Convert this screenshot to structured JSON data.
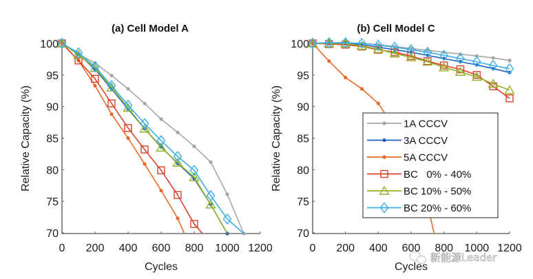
{
  "chart_data": [
    {
      "type": "line",
      "title": "(a) Cell Model A",
      "xlabel": "Cycles",
      "ylabel": "Relative Capacity (%)",
      "xlim": [
        0,
        1200
      ],
      "ylim": [
        69.3,
        100.5
      ],
      "xticks": [
        0,
        200,
        400,
        600,
        800,
        1000,
        1200
      ],
      "xtick_labels": [
        "0",
        "200",
        "400",
        "600",
        "800",
        "1000",
        "1200"
      ],
      "yticks": [
        70,
        75,
        80,
        85,
        90,
        95,
        100
      ],
      "ytick_labels": [
        "70",
        "75",
        "80",
        "85",
        "90",
        "95",
        "100"
      ],
      "grid": false,
      "legend": false,
      "series": [
        {
          "name": "1A CCCV",
          "color": "#a6a6a6",
          "marker": "dot",
          "x": [
            0,
            100,
            200,
            300,
            400,
            500,
            600,
            700,
            800,
            900,
            1000,
            1100
          ],
          "y": [
            100,
            98.3,
            96.9,
            94.9,
            92.8,
            90.5,
            88.0,
            85.9,
            83.7,
            81.2,
            76.1,
            69.3
          ]
        },
        {
          "name": "3A CCCV",
          "color": "#1f5fbf",
          "marker": "dot",
          "x": [
            0,
            100,
            200,
            300,
            400,
            500,
            600,
            700,
            800,
            900,
            1000
          ],
          "y": [
            100,
            98.3,
            95.9,
            92.8,
            89.6,
            86.5,
            83.6,
            81.0,
            78.6,
            74.5,
            69.5
          ]
        },
        {
          "name": "5A CCCV",
          "color": "#e8692a",
          "marker": "dot",
          "x": [
            0,
            100,
            200,
            300,
            400,
            500,
            600,
            700,
            740
          ],
          "y": [
            100,
            97.3,
            93.3,
            88.8,
            85.0,
            80.9,
            76.7,
            72.3,
            69.3
          ],
          "marker_count": 8
        },
        {
          "name": "BC   0% - 40%",
          "color": "#d9432a",
          "marker": "square",
          "x": [
            0,
            100,
            200,
            300,
            400,
            500,
            600,
            700,
            800,
            850
          ],
          "y": [
            100,
            97.3,
            94.4,
            90.5,
            86.6,
            83.2,
            79.9,
            76.0,
            71.4,
            69.3
          ],
          "marker_count": 9
        },
        {
          "name": "BC 10% - 50%",
          "color": "#93b22a",
          "marker": "triangle",
          "x": [
            0,
            100,
            200,
            300,
            400,
            500,
            600,
            700,
            800,
            900,
            1000
          ],
          "y": [
            100,
            98.2,
            96.1,
            93.0,
            89.8,
            86.5,
            83.5,
            81.1,
            78.8,
            74.5,
            69.3
          ],
          "marker_count": 10
        },
        {
          "name": "BC 20% - 60%",
          "color": "#3aaee6",
          "marker": "diamond",
          "x": [
            0,
            100,
            200,
            300,
            400,
            500,
            600,
            700,
            800,
            900,
            1000,
            1100
          ],
          "y": [
            100,
            98.5,
            96.3,
            93.3,
            90.2,
            87.3,
            84.6,
            82.1,
            79.9,
            75.9,
            72.2,
            69.3
          ],
          "marker_count": 11
        }
      ]
    },
    {
      "type": "line",
      "title": "(b) Cell Model C",
      "xlabel": "Cycles",
      "ylabel": "Relative Capacity (%)",
      "xlim": [
        0,
        1200
      ],
      "ylim": [
        69.3,
        100.5
      ],
      "xticks": [
        0,
        200,
        400,
        600,
        800,
        1000,
        1200
      ],
      "xtick_labels": [
        "0",
        "200",
        "400",
        "600",
        "800",
        "1000",
        "1200"
      ],
      "yticks": [
        70,
        75,
        80,
        85,
        90,
        95,
        100
      ],
      "ytick_labels": [
        "70",
        "75",
        "80",
        "85",
        "90",
        "95",
        "100"
      ],
      "grid": false,
      "legend": true,
      "legend_position": "center-right",
      "series": [
        {
          "name": "1A CCCV",
          "color": "#a6a6a6",
          "marker": "dot",
          "x": [
            0,
            100,
            200,
            300,
            400,
            500,
            600,
            700,
            800,
            900,
            1000,
            1100,
            1200
          ],
          "y": [
            100,
            100.1,
            100.1,
            100.0,
            99.8,
            99.5,
            99.2,
            98.9,
            98.6,
            98.3,
            98.0,
            97.7,
            97.3
          ]
        },
        {
          "name": "3A CCCV",
          "color": "#1f5fbf",
          "marker": "dot",
          "x": [
            0,
            100,
            200,
            300,
            400,
            500,
            600,
            700,
            800,
            900,
            1000,
            1100,
            1200
          ],
          "y": [
            100,
            100.0,
            100.0,
            99.8,
            99.4,
            99.0,
            98.6,
            98.1,
            97.6,
            97.1,
            96.6,
            96.0,
            95.4
          ]
        },
        {
          "name": "5A CCCV",
          "color": "#e8692a",
          "marker": "dot",
          "x": [
            0,
            100,
            200,
            300,
            400,
            500,
            600,
            700,
            740
          ],
          "y": [
            100,
            97.2,
            94.6,
            92.8,
            90.5,
            86.5,
            81.5,
            74.5,
            69.3
          ],
          "marker_count": 5
        },
        {
          "name": "BC   0% - 40%",
          "color": "#d9432a",
          "marker": "square",
          "x": [
            0,
            100,
            200,
            300,
            400,
            500,
            600,
            700,
            800,
            900,
            1000,
            1100,
            1200
          ],
          "y": [
            100,
            99.9,
            99.8,
            99.5,
            99.0,
            98.6,
            98.0,
            97.2,
            96.5,
            95.9,
            95.0,
            93.2,
            91.3
          ]
        },
        {
          "name": "BC 10% - 50%",
          "color": "#93b22a",
          "marker": "triangle",
          "x": [
            0,
            100,
            200,
            300,
            400,
            500,
            600,
            700,
            800,
            900,
            1000,
            1100,
            1200
          ],
          "y": [
            100,
            100.0,
            100.0,
            99.6,
            99.1,
            98.4,
            97.8,
            97.1,
            96.2,
            95.5,
            94.7,
            93.6,
            92.6
          ]
        },
        {
          "name": "BC 20% - 60%",
          "color": "#3aaee6",
          "marker": "diamond",
          "x": [
            0,
            100,
            200,
            300,
            400,
            500,
            600,
            700,
            800,
            900,
            1000,
            1100,
            1200
          ],
          "y": [
            100,
            100.1,
            100.1,
            100.0,
            99.7,
            99.4,
            99.0,
            98.6,
            98.1,
            97.6,
            97.1,
            96.5,
            96.0
          ]
        }
      ]
    }
  ],
  "watermark": {
    "icon": "wechat-icon",
    "text": "新能源Leader"
  }
}
